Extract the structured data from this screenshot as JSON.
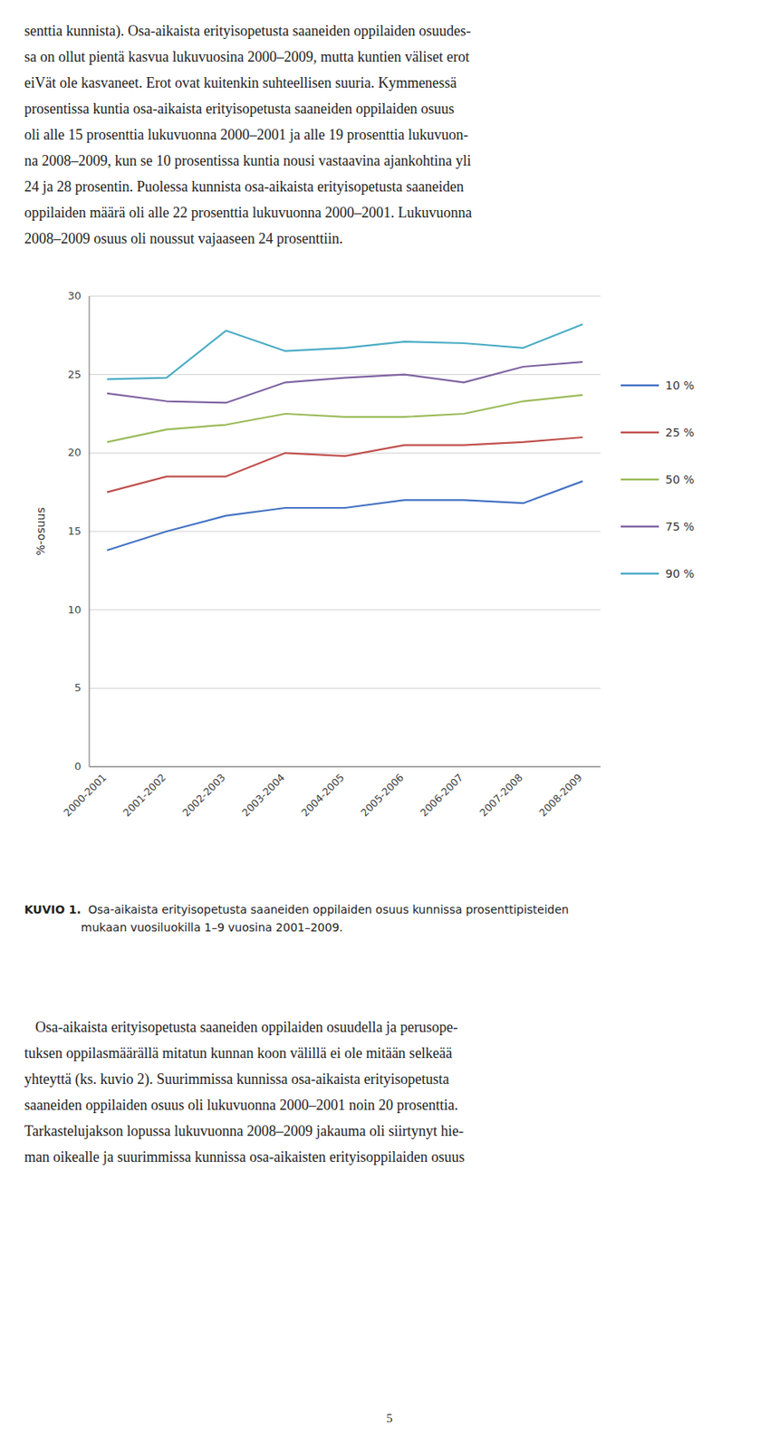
{
  "chart_data": {
    "type": "line",
    "title": "KUVIO 1.",
    "subtitle": "  Osa-aikaista erityisopetusta saaneiden oppilaiden osuus kunnissa prosenttipisteiden\nmukaan vuosiluokilla 1–9 vuosina 2001–2009.",
    "ylabel": "%-osuus",
    "categories": [
      "2000-2001",
      "2001-2002",
      "2002-2003",
      "2003-2004",
      "2004-2005",
      "2005-2006",
      "2006-2007",
      "2007-2008",
      "2008-2009"
    ],
    "series": [
      {
        "name": "10 %",
        "color": "#4472C4",
        "values": [
          13.8,
          15.0,
          16.0,
          16.5,
          16.5,
          17.0,
          17.0,
          16.8,
          18.2
        ]
      },
      {
        "name": "25 %",
        "color": "#C0504D",
        "values": [
          17.5,
          18.5,
          18.5,
          20.0,
          19.8,
          20.5,
          20.5,
          20.7,
          21.0
        ]
      },
      {
        "name": "50 %",
        "color": "#9BBB59",
        "values": [
          20.7,
          21.5,
          21.8,
          22.5,
          22.3,
          22.3,
          22.5,
          23.3,
          23.7
        ]
      },
      {
        "name": "75 %",
        "color": "#8064A2",
        "values": [
          23.8,
          23.3,
          23.2,
          24.5,
          24.8,
          25.0,
          24.5,
          25.5,
          25.8
        ]
      },
      {
        "name": "90 %",
        "color": "#4BACC6",
        "values": [
          24.7,
          24.8,
          27.8,
          26.5,
          26.7,
          27.1,
          27.0,
          26.7,
          28.2
        ]
      }
    ],
    "ylim": [
      0,
      30
    ],
    "yticks": [
      0,
      5,
      10,
      15,
      20,
      25,
      30
    ],
    "grid": true,
    "legend": "right",
    "annotations": [
      "senttia kunnista). Osa-aikaista erityisopetusta saaneiden oppilaiden osuudes-\nsa on ollut pientä kasvua lukuvuosina 2000–2009, mutta kuntien väliset erot\neiVät ole kasvaneet. Erot ovat kuitenkin suhteellisen suuria. Kymmenessä\nprosentissa kuntia osa-aikaista erityisopetusta saaneiden oppilaiden osuus\noli alle 15 prosenttia lukuvuonna 2000–2001 ja alle 19 prosenttia lukuvuon-\nna 2008–2009, kun se 10 prosentissa kuntia nousi vastaavina ajankohtina yli\n24 ja 28 prosentin. Puolessa kunnista osa-aikaista erityisopetusta saaneiden\noppilaiden määrä oli alle 22 prosenttia lukuvuonna 2000–2001. Lukuvuonna\n2008–2009 osuus oli noussut vajaaseen 24 prosenttiin.",
      "   Osa-aikaista erityisopetusta saaneiden oppilaiden osuudella ja perusope-\ntuksen oppilasmäärällä mitatun kunnan koon välillä ei ole mitään selkeää\nyhteyttä (ks. kuvio 2). Suurimmissa kunnissa osa-aikaista erityisopetusta\nsaaneiden oppilaiden osuus oli lukuvuonna 2000–2001 noin 20 prosenttia.\nTarkastelujakson lopussa lukuvuonna 2008–2009 jakauma oli siirtynyt hie-\nman oikealle ja suurimmissa kunnissa osa-aikaisten erityisoppilaiden osuus",
      "5"
    ]
  }
}
